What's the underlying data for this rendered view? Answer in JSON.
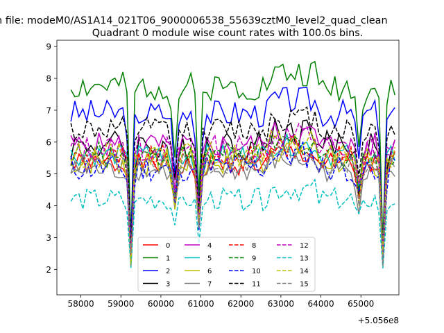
{
  "chart_data": {
    "type": "line",
    "suptitle": "n file: modeM0/AS1A14_021T06_9000006538_55639cztM0_level2_quad_clean",
    "title": "Quadrant 0 module wise count rates with 100.0s bins.",
    "xlabel": "",
    "ylabel": "",
    "x_offset_label": "+5.056e8",
    "xlim": [
      57400,
      65950
    ],
    "ylim": [
      1.2,
      9.2
    ],
    "x_ticks": [
      58000,
      59000,
      60000,
      61000,
      62000,
      63000,
      64000,
      65000
    ],
    "y_ticks": [
      2,
      3,
      4,
      5,
      6,
      7,
      8,
      9
    ],
    "x_start": 57750,
    "x_step": 100,
    "dips": [
      {
        "x": 59250,
        "depth": 0.82
      },
      {
        "x": 60350,
        "depth": 0.35
      },
      {
        "x": 60950,
        "depth": 0.55
      },
      {
        "x": 64950,
        "depth": 0.3
      },
      {
        "x": 65550,
        "depth": 0.85
      }
    ],
    "legend": {
      "location": "lower center",
      "columns": 4
    },
    "series": [
      {
        "name": "0",
        "color": "#ff0000",
        "dash": "solid",
        "base": 5.3,
        "amp": 0.35,
        "seed": 1
      },
      {
        "name": "1",
        "color": "#008000",
        "dash": "solid",
        "base": 7.75,
        "amp": 0.45,
        "seed": 2
      },
      {
        "name": "2",
        "color": "#0000ff",
        "dash": "solid",
        "base": 6.9,
        "amp": 0.45,
        "seed": 3
      },
      {
        "name": "3",
        "color": "#000000",
        "dash": "solid",
        "base": 5.9,
        "amp": 0.5,
        "seed": 4
      },
      {
        "name": "4",
        "color": "#bf00bf",
        "dash": "solid",
        "base": 5.9,
        "amp": 0.4,
        "seed": 5
      },
      {
        "name": "5",
        "color": "#00bfbf",
        "dash": "solid",
        "base": 5.6,
        "amp": 0.35,
        "seed": 6
      },
      {
        "name": "6",
        "color": "#bfbf00",
        "dash": "solid",
        "base": 5.4,
        "amp": 0.45,
        "seed": 7
      },
      {
        "name": "7",
        "color": "#808080",
        "dash": "solid",
        "base": 5.1,
        "amp": 0.35,
        "seed": 8
      },
      {
        "name": "8",
        "color": "#ff0000",
        "dash": "dashed",
        "base": 5.5,
        "amp": 0.4,
        "seed": 9
      },
      {
        "name": "9",
        "color": "#008000",
        "dash": "dashed",
        "base": 5.6,
        "amp": 0.4,
        "seed": 10
      },
      {
        "name": "10",
        "color": "#0000ff",
        "dash": "dashed",
        "base": 5.2,
        "amp": 0.45,
        "seed": 11
      },
      {
        "name": "11",
        "color": "#000000",
        "dash": "dashed",
        "base": 6.4,
        "amp": 0.4,
        "seed": 12
      },
      {
        "name": "12",
        "color": "#bf00bf",
        "dash": "dashed",
        "base": 5.8,
        "amp": 0.45,
        "seed": 13
      },
      {
        "name": "13",
        "color": "#00bfbf",
        "dash": "dashed",
        "base": 4.2,
        "amp": 0.35,
        "seed": 14
      },
      {
        "name": "14",
        "color": "#bfbf00",
        "dash": "dashed",
        "base": 5.6,
        "amp": 0.4,
        "seed": 15
      },
      {
        "name": "15",
        "color": "#808080",
        "dash": "dashed",
        "base": 5.3,
        "amp": 0.35,
        "seed": 16
      }
    ]
  }
}
